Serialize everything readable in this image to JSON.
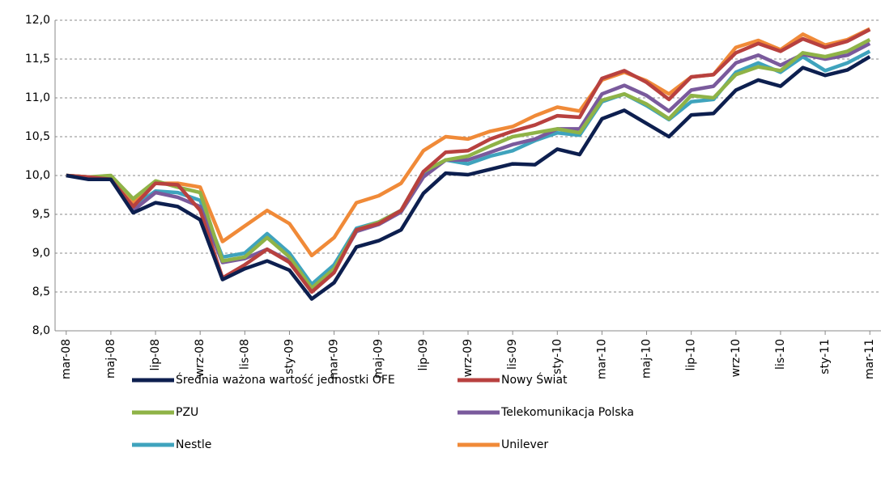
{
  "chart_data": {
    "type": "line",
    "categories": [
      "mar-08",
      null,
      "maj-08",
      null,
      "lip-08",
      null,
      "wrz-08",
      null,
      "lis-08",
      null,
      "sty-09",
      null,
      "mar-09",
      null,
      "maj-09",
      null,
      "lip-09",
      null,
      "wrz-09",
      null,
      "lis-09",
      null,
      "sty-10",
      null,
      "mar-10",
      null,
      "maj-10",
      null,
      "lip-10",
      null,
      "wrz-10",
      null,
      "lis-10",
      null,
      "sty-11",
      null,
      "mar-11"
    ],
    "ylim": [
      8.0,
      12.0
    ],
    "yticks": [
      {
        "value": 8.0,
        "label": "8,0"
      },
      {
        "value": 8.5,
        "label": "8,5"
      },
      {
        "value": 9.0,
        "label": "9,0"
      },
      {
        "value": 9.5,
        "label": "9,5"
      },
      {
        "value": 10.0,
        "label": "10,0"
      },
      {
        "value": 10.5,
        "label": "10,5"
      },
      {
        "value": 11.0,
        "label": "11,0"
      },
      {
        "value": 11.5,
        "label": "11,5"
      },
      {
        "value": 12.0,
        "label": "12,0"
      }
    ],
    "grid": true,
    "legend": "bottom",
    "series": [
      {
        "name": "Średnia ważona wartość jednostki OFE",
        "color": "#0d1f4f",
        "values": [
          10.0,
          9.95,
          9.95,
          9.52,
          9.65,
          9.6,
          9.43,
          8.66,
          8.8,
          8.9,
          8.78,
          8.41,
          8.62,
          9.08,
          9.16,
          9.3,
          9.77,
          10.03,
          10.01,
          10.08,
          10.15,
          10.14,
          10.34,
          10.27,
          10.73,
          10.84,
          10.67,
          10.5,
          10.78,
          10.8,
          11.1,
          11.23,
          11.15,
          11.39,
          11.29,
          11.36,
          11.53
        ]
      },
      {
        "name": "Nowy Świat",
        "color": "#b8413f",
        "values": [
          10.0,
          9.98,
          9.95,
          9.6,
          9.9,
          9.88,
          9.55,
          8.68,
          8.85,
          9.05,
          8.88,
          8.5,
          8.75,
          9.3,
          9.38,
          9.55,
          10.05,
          10.3,
          10.32,
          10.47,
          10.57,
          10.65,
          10.77,
          10.75,
          11.25,
          11.35,
          11.2,
          10.98,
          11.27,
          11.3,
          11.58,
          11.7,
          11.6,
          11.76,
          11.65,
          11.73,
          11.88
        ]
      },
      {
        "name": "PZU",
        "color": "#8fb347",
        "values": [
          10.0,
          9.98,
          10.0,
          9.7,
          9.93,
          9.85,
          9.78,
          8.9,
          8.95,
          9.2,
          8.95,
          8.55,
          8.8,
          9.3,
          9.4,
          9.55,
          10.05,
          10.2,
          10.25,
          10.38,
          10.5,
          10.55,
          10.6,
          10.55,
          10.97,
          11.05,
          10.92,
          10.73,
          11.03,
          11.0,
          11.3,
          11.4,
          11.35,
          11.58,
          11.53,
          11.6,
          11.75
        ]
      },
      {
        "name": "Telekomunikacja Polska",
        "color": "#7a5a9c",
        "values": [
          10.0,
          9.97,
          9.95,
          9.55,
          9.78,
          9.72,
          9.6,
          8.88,
          8.93,
          9.05,
          8.9,
          8.55,
          8.78,
          9.28,
          9.37,
          9.53,
          9.98,
          10.2,
          10.2,
          10.3,
          10.4,
          10.47,
          10.6,
          10.6,
          11.05,
          11.16,
          11.03,
          10.83,
          11.1,
          11.15,
          11.45,
          11.55,
          11.42,
          11.56,
          11.5,
          11.55,
          11.7
        ]
      },
      {
        "name": "Nestle",
        "color": "#3fa3bd",
        "values": [
          10.0,
          9.98,
          9.95,
          9.6,
          9.8,
          9.78,
          9.68,
          8.95,
          9.0,
          9.25,
          9.0,
          8.6,
          8.85,
          9.32,
          9.4,
          9.55,
          10.0,
          10.2,
          10.15,
          10.25,
          10.32,
          10.45,
          10.55,
          10.52,
          10.95,
          11.05,
          10.9,
          10.72,
          10.95,
          10.98,
          11.33,
          11.45,
          11.33,
          11.53,
          11.35,
          11.45,
          11.6
        ]
      },
      {
        "name": "Unilever",
        "color": "#f08a38",
        "values": [
          10.0,
          9.98,
          9.97,
          9.65,
          9.9,
          9.9,
          9.85,
          9.15,
          9.35,
          9.55,
          9.38,
          8.97,
          9.2,
          9.65,
          9.74,
          9.9,
          10.32,
          10.5,
          10.47,
          10.57,
          10.63,
          10.77,
          10.88,
          10.83,
          11.23,
          11.33,
          11.22,
          11.05,
          11.27,
          11.3,
          11.65,
          11.74,
          11.62,
          11.82,
          11.68,
          11.75,
          11.89
        ]
      }
    ]
  }
}
